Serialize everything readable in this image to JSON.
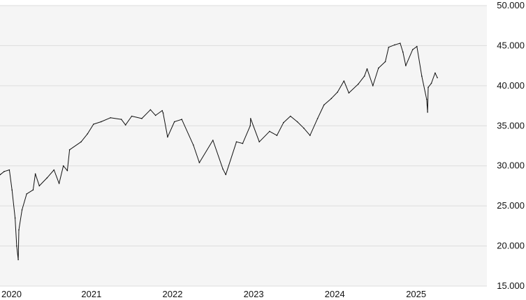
{
  "chart_data": {
    "type": "line",
    "title": "",
    "xlabel": "",
    "ylabel": "",
    "ylim": [
      15000,
      50000
    ],
    "xlim": [
      "2020-01-01",
      "2025-12-31"
    ],
    "grid": true,
    "legend": "none",
    "colors": {
      "plot_background": "#f5f5f5",
      "grid": "#dddddd",
      "line": "#111111",
      "text": "#111111"
    },
    "y_ticks": [
      {
        "value": 15000,
        "label": "15.000"
      },
      {
        "value": 20000,
        "label": "20.000"
      },
      {
        "value": 25000,
        "label": "25.000"
      },
      {
        "value": 30000,
        "label": "30.000"
      },
      {
        "value": 35000,
        "label": "35.000"
      },
      {
        "value": 40000,
        "label": "40.000"
      },
      {
        "value": 45000,
        "label": "45.000"
      },
      {
        "value": 50000,
        "label": "50.000"
      }
    ],
    "x_ticks": [
      {
        "value": "2020-01-01",
        "label": "2020"
      },
      {
        "value": "2021-01-01",
        "label": "2021"
      },
      {
        "value": "2022-01-01",
        "label": "2022"
      },
      {
        "value": "2023-01-01",
        "label": "2023"
      },
      {
        "value": "2024-01-01",
        "label": "2024"
      },
      {
        "value": "2025-01-01",
        "label": "2025"
      }
    ],
    "series": [
      {
        "x": [
          "2020-01-02",
          "2020-01-20",
          "2020-02-12",
          "2020-02-24",
          "2020-03-09",
          "2020-03-16",
          "2020-03-23",
          "2020-03-26",
          "2020-04-09",
          "2020-04-30",
          "2020-05-29",
          "2020-06-08",
          "2020-06-26",
          "2020-07-31",
          "2020-08-31",
          "2020-09-23",
          "2020-10-12",
          "2020-10-30",
          "2020-11-09",
          "2020-12-31",
          "2021-01-29",
          "2021-02-25",
          "2021-03-31",
          "2021-05-12",
          "2021-06-30",
          "2021-07-19",
          "2021-08-16",
          "2021-09-30",
          "2021-11-08",
          "2021-12-01",
          "2021-12-31",
          "2022-01-04",
          "2022-01-24",
          "2022-02-24",
          "2022-03-29",
          "2022-05-20",
          "2022-06-16",
          "2022-08-16",
          "2022-09-30",
          "2022-10-13",
          "2022-11-30",
          "2022-12-28",
          "2023-01-31",
          "2023-02-02",
          "2023-03-13",
          "2023-04-28",
          "2023-05-31",
          "2023-06-30",
          "2023-07-31",
          "2023-08-31",
          "2023-09-29",
          "2023-10-27",
          "2023-11-30",
          "2023-12-29",
          "2024-01-31",
          "2024-02-28",
          "2024-03-28",
          "2024-04-19",
          "2024-05-31",
          "2024-06-28",
          "2024-07-10",
          "2024-08-05",
          "2024-08-30",
          "2024-09-30",
          "2024-10-15",
          "2024-11-11",
          "2024-12-06",
          "2024-12-18",
          "2024-12-31",
          "2025-01-31",
          "2025-02-19",
          "2025-03-13",
          "2025-04-04",
          "2025-04-08",
          "2025-04-11",
          "2025-04-25",
          "2025-05-12",
          "2025-05-22"
        ],
        "y": [
          28900,
          29300,
          29500,
          27000,
          23500,
          20000,
          18300,
          22000,
          24500,
          26500,
          27000,
          29000,
          27500,
          28500,
          29500,
          27800,
          30000,
          29400,
          32000,
          33000,
          34000,
          35200,
          35500,
          36000,
          35800,
          35100,
          36200,
          35900,
          37000,
          36300,
          36900,
          36600,
          33600,
          35500,
          35800,
          32600,
          30400,
          33200,
          29600,
          28900,
          33000,
          32800,
          35000,
          35900,
          33000,
          34300,
          33800,
          35400,
          36200,
          35500,
          34700,
          33800,
          35900,
          37600,
          38400,
          39200,
          40600,
          39100,
          40200,
          41200,
          42100,
          40000,
          42200,
          43000,
          44800,
          45100,
          45300,
          44200,
          42500,
          44500,
          44900,
          41200,
          38300,
          36700,
          39800,
          40300,
          41600,
          41000
        ]
      }
    ]
  }
}
